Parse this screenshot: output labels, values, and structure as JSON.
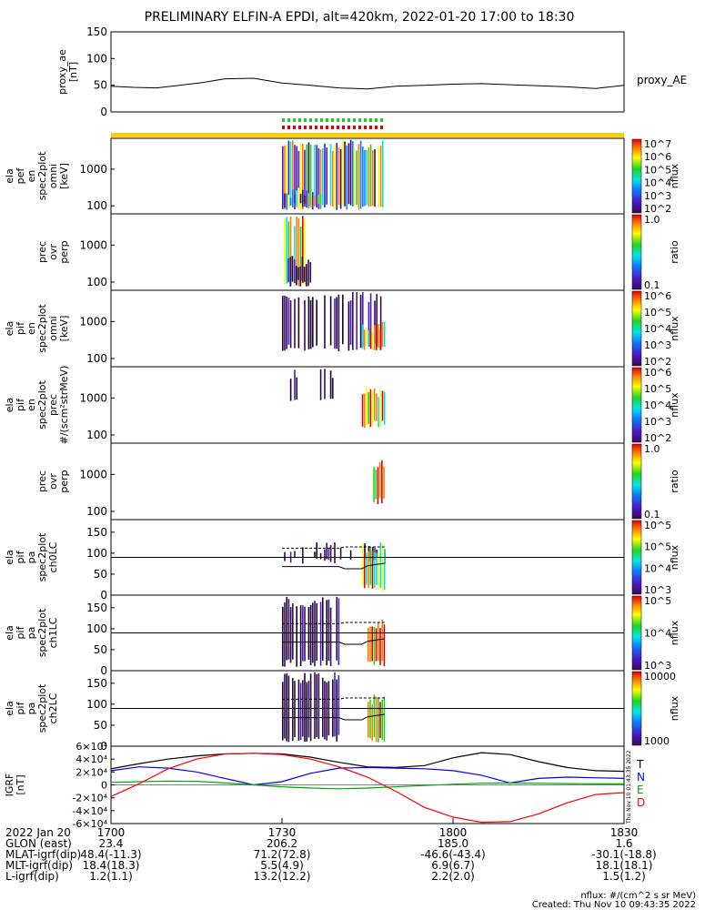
{
  "title": "PRELIMINARY ELFIN-A EPDI, alt=420km, 2022-01-20 17:00 to 18:30",
  "chart_data": [
    {
      "type": "line",
      "panel": "proxy_ae",
      "ylabel_lines": [
        "proxy_ae",
        "[nT]"
      ],
      "series_label": "proxy_AE",
      "ylim": [
        0,
        150
      ],
      "yticks": [
        "0",
        "50",
        "100",
        "150"
      ],
      "xlim_minutes": [
        0,
        90
      ],
      "x": [
        0,
        4,
        8,
        12,
        16,
        20,
        25,
        30,
        35,
        40,
        45,
        50,
        55,
        60,
        65,
        70,
        75,
        80,
        85,
        90
      ],
      "values": [
        48,
        46,
        45,
        50,
        55,
        62,
        63,
        54,
        50,
        45,
        43,
        48,
        50,
        52,
        53,
        51,
        49,
        47,
        44,
        50
      ]
    },
    {
      "type": "heatmap",
      "panel": "ela_pef_en_spec2plot_omni",
      "ylabel_lines": [
        "ela",
        "pef",
        "en",
        "spec2plot",
        "omni",
        "[keV]"
      ],
      "ylog": true,
      "yticks": [
        "100",
        "1000"
      ],
      "colorbar_label": "nflux",
      "colorbar_ticks": [
        "10^2",
        "10^3",
        "10^4",
        "10^5",
        "10^6",
        "10^7"
      ]
    },
    {
      "type": "heatmap",
      "panel": "prec_ovr_perp_1",
      "ylabel_lines": [
        "prec",
        "ovr",
        "perp"
      ],
      "ylog": true,
      "yticks": [
        "100",
        "1000"
      ],
      "colorbar_label": "ratio",
      "colorbar_ticks": [
        "0.1",
        "1.0"
      ]
    },
    {
      "type": "heatmap",
      "panel": "ela_pif_en_spec2plot_omni",
      "ylabel_lines": [
        "ela",
        "pif",
        "en",
        "spec2plot",
        "omni",
        "[keV]"
      ],
      "ylog": true,
      "yticks": [
        "100",
        "1000"
      ],
      "colorbar_label": "nflux",
      "colorbar_ticks": [
        "10^2",
        "10^3",
        "10^4",
        "10^5",
        "10^6"
      ]
    },
    {
      "type": "heatmap",
      "panel": "ela_pif_en_spec2plot_prec",
      "ylabel_lines": [
        "ela",
        "pif",
        "en",
        "spec2plot",
        "prec",
        "#/(scm²strMeV)"
      ],
      "ylog": true,
      "yticks": [
        "100",
        "1000"
      ],
      "colorbar_label": "nflux",
      "colorbar_ticks": [
        "10^2",
        "10^3",
        "10^4",
        "10^5",
        "10^6"
      ]
    },
    {
      "type": "heatmap",
      "panel": "prec_ovr_perp_2",
      "ylabel_lines": [
        "prec",
        "ovr",
        "perp"
      ],
      "ylog": true,
      "yticks": [
        "100",
        "1000"
      ],
      "colorbar_label": "ratio",
      "colorbar_ticks": [
        "0.1",
        "1.0"
      ]
    },
    {
      "type": "heatmap",
      "panel": "ela_pif_pa_spec2plot_ch0LC",
      "ylabel_lines": [
        "ela",
        "pif",
        "pa",
        "spec2plot",
        "ch0LC"
      ],
      "ylim": [
        0,
        180
      ],
      "yticks": [
        "0",
        "50",
        "100",
        "150"
      ],
      "colorbar_label": "nflux",
      "colorbar_ticks": [
        "10^3",
        "10^4",
        "10^5",
        "10^5"
      ]
    },
    {
      "type": "heatmap",
      "panel": "ela_pif_pa_spec2plot_ch1LC",
      "ylabel_lines": [
        "ela",
        "pif",
        "pa",
        "spec2plot",
        "ch1LC"
      ],
      "ylim": [
        0,
        180
      ],
      "yticks": [
        "0",
        "50",
        "100",
        "150"
      ],
      "colorbar_label": "nflux",
      "colorbar_ticks": [
        "10^3",
        "10^4",
        "10^5"
      ]
    },
    {
      "type": "heatmap",
      "panel": "ela_pif_pa_spec2plot_ch2LC",
      "ylabel_lines": [
        "ela",
        "pif",
        "pa",
        "spec2plot",
        "ch2LC"
      ],
      "ylim": [
        0,
        180
      ],
      "yticks": [
        "0",
        "50",
        "100",
        "150"
      ],
      "colorbar_label": "nflux",
      "colorbar_ticks": [
        "1000",
        "10000"
      ]
    },
    {
      "type": "line",
      "panel": "IGRF",
      "ylabel_lines": [
        "IGRF",
        "[nT]"
      ],
      "ylim": [
        -60000,
        60000
      ],
      "yticks": [
        "-6×10⁴",
        "-4×10⁴",
        "-2×10⁴",
        "0",
        "2×10⁴",
        "4×10⁴",
        "6×10⁴"
      ],
      "xlim_minutes": [
        0,
        90
      ],
      "x": [
        0,
        5,
        10,
        15,
        20,
        25,
        30,
        35,
        40,
        45,
        50,
        55,
        60,
        65,
        70,
        75,
        80,
        85,
        90
      ],
      "series": [
        {
          "name": "T",
          "color": "#000000",
          "values": [
            25000,
            33000,
            40000,
            45000,
            48000,
            49000,
            48000,
            43000,
            35000,
            28000,
            27000,
            30000,
            42000,
            50000,
            47000,
            36000,
            27000,
            22000,
            21000
          ]
        },
        {
          "name": "N",
          "color": "#0000ff",
          "values": [
            22000,
            28000,
            26000,
            20000,
            10000,
            0,
            5000,
            18000,
            26000,
            27000,
            26000,
            25000,
            22000,
            15000,
            3000,
            10000,
            12000,
            11000,
            10000
          ]
        },
        {
          "name": "E",
          "color": "#00aa00",
          "values": [
            4000,
            5000,
            6000,
            5500,
            3000,
            0,
            -3000,
            -5000,
            -6000,
            -5000,
            -3000,
            -1000,
            1000,
            2500,
            3000,
            2500,
            2000,
            1500,
            1500
          ]
        },
        {
          "name": "D",
          "color": "#ff0000",
          "values": [
            -18000,
            2000,
            25000,
            40000,
            48000,
            49000,
            47000,
            40000,
            28000,
            12000,
            -10000,
            -35000,
            -50000,
            -58000,
            -57000,
            -45000,
            -28000,
            -15000,
            -12000
          ]
        }
      ]
    }
  ],
  "xaxis": {
    "rows": [
      {
        "label": "2022 Jan 20",
        "values": [
          "1700",
          "1730",
          "1800",
          "1830"
        ]
      },
      {
        "label": "GLON (east)",
        "values": [
          "23.4",
          "206.2",
          "185.0",
          "1.6"
        ]
      },
      {
        "label": "MLAT-igrf(dip)",
        "values": [
          "48.4(-11.3)",
          "71.2(72.8)",
          "-46.6(-43.4)",
          "-30.1(-18.8)"
        ]
      },
      {
        "label": "MLT-igrf(dip)",
        "values": [
          "18.4(18.3)",
          "5.5(4.9)",
          "6.9(6.7)",
          "18.1(18.1)"
        ]
      },
      {
        "label": "L-igrf(dip)",
        "values": [
          "1.2(1.1)",
          "13.2(12.2)",
          "2.2(2.0)",
          "1.5(1.2)"
        ]
      }
    ]
  },
  "footer": {
    "units": "nflux: #/(cm^2 s sr MeV)",
    "created": "Created: Thu Nov 10 09:43:35 2022",
    "side_stamp": "Thu Nov 10 01:43:35 2022"
  }
}
